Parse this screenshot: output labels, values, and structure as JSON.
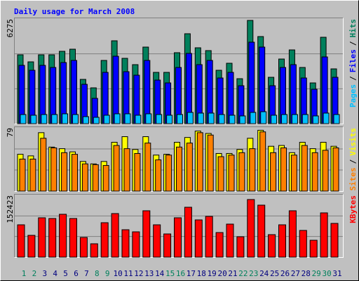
{
  "title": "Daily usage for March 2008",
  "legend_separator": "/",
  "chart_data": [
    {
      "type": "bar",
      "ylim": [
        0,
        6275
      ],
      "yticks": [
        6275
      ],
      "grid_divisions": 3,
      "series": [
        {
          "name": "Hits",
          "color": "#00805c",
          "values": [
            4127,
            3705,
            4127,
            4127,
            4337,
            4463,
            2653,
            2147,
            3790,
            4968,
            3916,
            3537,
            4590,
            3074,
            3074,
            4253,
            5390,
            4548,
            4379,
            3200,
            3621,
            2695,
            6190,
            5221,
            2779,
            3874,
            4421,
            3368,
            2442,
            5179,
            3284
          ]
        },
        {
          "name": "Files",
          "color": "#0000ff",
          "values": [
            3495,
            3200,
            3495,
            3368,
            3663,
            3790,
            2358,
            1516,
            3074,
            4042,
            3116,
            2905,
            3790,
            2611,
            2442,
            3368,
            4211,
            3537,
            3790,
            2737,
            3074,
            2274,
            4884,
            4590,
            2274,
            3368,
            3537,
            2737,
            2063,
            4000,
            2779
          ]
        },
        {
          "name": "Pages",
          "color": "#00c0ff",
          "values": [
            547,
            505,
            547,
            547,
            590,
            547,
            420,
            380,
            505,
            590,
            590,
            505,
            590,
            547,
            505,
            547,
            674,
            632,
            632,
            547,
            505,
            463,
            674,
            716,
            505,
            547,
            547,
            547,
            463,
            632,
            547
          ]
        }
      ]
    },
    {
      "type": "bar",
      "ylim": [
        0,
        79
      ],
      "yticks": [
        79
      ],
      "grid_divisions": 3,
      "series": [
        {
          "name": "Visits",
          "color": "#ffff00",
          "values": [
            46,
            44,
            73,
            55,
            53,
            49,
            37,
            34,
            37,
            61,
            68,
            52,
            68,
            45,
            46,
            61,
            67,
            75,
            72,
            47,
            47,
            52,
            66,
            76,
            56,
            57,
            48,
            61,
            53,
            61,
            56
          ]
        },
        {
          "name": "Sites",
          "color": "#ff8000",
          "values": [
            40,
            40,
            66,
            54,
            48,
            46,
            34,
            33,
            32,
            57,
            53,
            47,
            60,
            39,
            45,
            55,
            60,
            73,
            70,
            43,
            45,
            48,
            53,
            74,
            48,
            54,
            45,
            57,
            48,
            51,
            54
          ]
        }
      ]
    },
    {
      "type": "bar",
      "ylim": [
        0,
        152423
      ],
      "yticks": [
        152423
      ],
      "grid_divisions": 3,
      "categories": [
        "1",
        "2",
        "3",
        "4",
        "5",
        "6",
        "7",
        "8",
        "9",
        "10",
        "11",
        "12",
        "13",
        "14",
        "15",
        "16",
        "17",
        "18",
        "19",
        "20",
        "21",
        "22",
        "23",
        "24",
        "25",
        "26",
        "27",
        "28",
        "29",
        "30",
        "31"
      ],
      "category_color": "#00007f",
      "weekend_color": "#00805c",
      "weekend_indices": [
        0,
        1,
        7,
        8,
        14,
        15,
        21,
        22,
        28,
        29
      ],
      "series": [
        {
          "name": "KBytes",
          "color": "#ff0000",
          "values": [
            79672,
            53692,
            96992,
            95260,
            105652,
            95260,
            48496,
            32908,
            84868,
            107384,
            67548,
            62352,
            114312,
            79672,
            57156,
            96992,
            122972,
            91796,
            100456,
            60620,
            81404,
            50228,
            142024,
            128168,
            55424,
            79672,
            114312,
            65816,
            41568,
            109116,
            83136
          ]
        }
      ]
    }
  ]
}
